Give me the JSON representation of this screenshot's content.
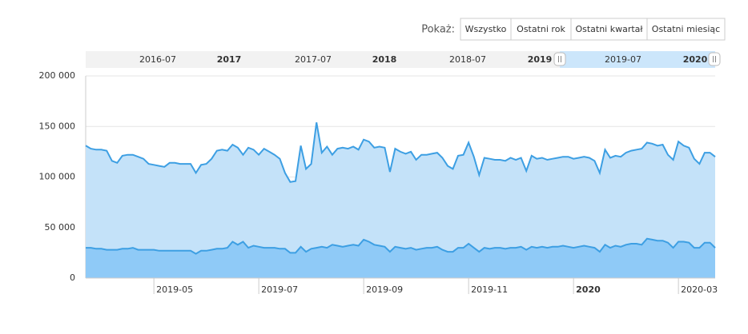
{
  "range_selector": {
    "label": "Pokaż:",
    "buttons": [
      "Wszystko",
      "Ostatni rok",
      "Ostatni kwartał",
      "Ostatni miesiąc"
    ]
  },
  "navigator": {
    "labels": [
      "2016-07",
      "2017",
      "2017-07",
      "2018",
      "2018-07",
      "2019",
      "2019-07",
      "2020"
    ]
  },
  "chart_data": {
    "type": "area",
    "categories": [
      null,
      null,
      null,
      null,
      null,
      null,
      null,
      null,
      null,
      null,
      null,
      null,
      null,
      "2019-05",
      null,
      null,
      null,
      null,
      null,
      null,
      null,
      null,
      null,
      null,
      null,
      null,
      null,
      null,
      null,
      null,
      null,
      null,
      null,
      "2019-07",
      null,
      null,
      null,
      null,
      null,
      null,
      null,
      null,
      null,
      null,
      null,
      null,
      null,
      null,
      null,
      null,
      null,
      null,
      null,
      "2019-09",
      null,
      null,
      null,
      null,
      null,
      null,
      null,
      null,
      null,
      null,
      null,
      null,
      null,
      null,
      null,
      null,
      null,
      null,
      null,
      "2019-11",
      null,
      null,
      null,
      null,
      null,
      null,
      null,
      null,
      null,
      null,
      null,
      null,
      null,
      null,
      null,
      null,
      null,
      null,
      null,
      "2020",
      null,
      null,
      null,
      null,
      null,
      null,
      null,
      null,
      null,
      null,
      null,
      null,
      null,
      null,
      null,
      null,
      null,
      null,
      null,
      "2020-03",
      null,
      null,
      null,
      null,
      null,
      null,
      null
    ],
    "series": [
      {
        "color": "#3d9fe3",
        "fill": "#c4e2f9",
        "values": [
          131000,
          128000,
          127000,
          127000,
          126000,
          116000,
          114000,
          121000,
          122000,
          122000,
          120000,
          118000,
          113000,
          112000,
          111000,
          110000,
          114000,
          114000,
          113000,
          113000,
          113000,
          104000,
          112000,
          113000,
          118000,
          126000,
          127000,
          126000,
          132000,
          129000,
          122000,
          129000,
          127000,
          122000,
          128000,
          125000,
          122000,
          118000,
          104000,
          95000,
          96000,
          131000,
          108000,
          113000,
          154000,
          124000,
          130000,
          122000,
          128000,
          129000,
          128000,
          130000,
          127000,
          137000,
          135000,
          129000,
          130000,
          129000,
          105000,
          128000,
          125000,
          123000,
          125000,
          117000,
          122000,
          122000,
          123000,
          124000,
          119000,
          111000,
          108000,
          121000,
          122000,
          134000,
          120000,
          102000,
          119000,
          118000,
          117000,
          117000,
          116000,
          119000,
          117000,
          119000,
          106000,
          121000,
          118000,
          119000,
          117000,
          118000,
          119000,
          120000,
          120000,
          118000,
          119000,
          120000,
          119000,
          116000,
          104000,
          127000,
          119000,
          121000,
          120000,
          124000,
          126000,
          127000,
          128000,
          134000,
          133000,
          131000,
          132000,
          122000,
          117000,
          135000,
          131000,
          129000,
          118000,
          113000,
          124000,
          124000,
          120000
        ]
      },
      {
        "color": "#3d9fe3",
        "fill": "#8fcaf7",
        "values": [
          30000,
          30000,
          29000,
          29000,
          28000,
          28000,
          28000,
          29000,
          29000,
          30000,
          28000,
          28000,
          28000,
          28000,
          27000,
          27000,
          27000,
          27000,
          27000,
          27000,
          27000,
          24000,
          27000,
          27000,
          28000,
          29000,
          29000,
          30000,
          36000,
          33000,
          36000,
          30000,
          32000,
          31000,
          30000,
          30000,
          30000,
          29000,
          29000,
          25000,
          25000,
          31000,
          26000,
          29000,
          30000,
          31000,
          30000,
          33000,
          32000,
          31000,
          32000,
          33000,
          32000,
          38000,
          36000,
          33000,
          32000,
          31000,
          26000,
          31000,
          30000,
          29000,
          30000,
          28000,
          29000,
          30000,
          30000,
          31000,
          28000,
          26000,
          26000,
          30000,
          30000,
          34000,
          30000,
          26000,
          30000,
          29000,
          30000,
          30000,
          29000,
          30000,
          30000,
          31000,
          28000,
          31000,
          30000,
          31000,
          30000,
          31000,
          31000,
          32000,
          31000,
          30000,
          31000,
          32000,
          31000,
          30000,
          26000,
          33000,
          30000,
          32000,
          31000,
          33000,
          34000,
          34000,
          33000,
          39000,
          38000,
          37000,
          37000,
          35000,
          30000,
          36000,
          36000,
          35000,
          30000,
          30000,
          35000,
          35000,
          30000
        ]
      }
    ],
    "ylim": [
      0,
      200000
    ],
    "yticks": [
      0,
      {
        "value": 50000,
        "label": "50 000"
      },
      {
        "value": 100000,
        "label": "100 000"
      },
      {
        "value": 150000,
        "label": "150 000"
      },
      {
        "value": 200000,
        "label": "200 000"
      }
    ],
    "grid": true
  }
}
